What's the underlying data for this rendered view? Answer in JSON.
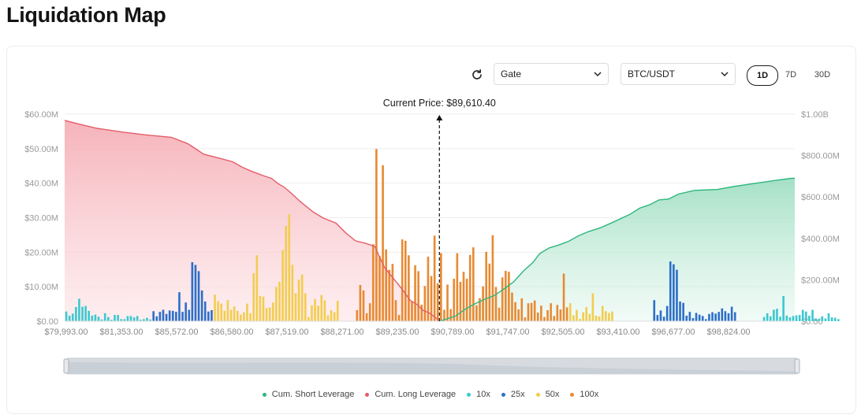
{
  "page": {
    "title": "Liquidation Map"
  },
  "controls": {
    "exchange": "Gate",
    "pair": "BTC/USDT",
    "ranges": [
      "1D",
      "7D",
      "30D"
    ],
    "active_range": "1D"
  },
  "current_price_label": "Current Price: $89,610.40",
  "colors": {
    "short": "#2eb67d",
    "long": "#e35d6a",
    "10x": "#3cc8cf",
    "25x": "#2d6fc8",
    "50x": "#f2cd4f",
    "100x": "#e88a32"
  },
  "chart_data": {
    "type": "bar",
    "left_axis": {
      "ticks": [
        "$0.00",
        "$10.00M",
        "$20.00M",
        "$30.00M",
        "$40.00M",
        "$50.00M",
        "$60.00M"
      ],
      "ylim": [
        0,
        60
      ]
    },
    "right_axis": {
      "ticks": [
        "$0.00",
        "$200.00M",
        "$400.00M",
        "$600.00M",
        "$800.00M",
        "$1.00B"
      ],
      "ylim": [
        0,
        1000
      ]
    },
    "x_ticks": [
      "$79,993.00",
      "$81,353.00",
      "$85,572.00",
      "$86,580.00",
      "$87,519.00",
      "$88,271.00",
      "$89,235.00",
      "$90,789.00",
      "$91,747.00",
      "$92,505.00",
      "$93,410.00",
      "$96,677.00",
      "$98,824.00"
    ],
    "current_price_index": 116,
    "bins": 226,
    "series_bars": [
      {
        "name": "10x",
        "values": [
          2.8,
          1.6,
          2.2,
          4.1,
          6.5,
          4.2,
          4.4,
          3.0,
          1.6,
          1.9,
          1.3,
          0.5,
          2.3,
          1.2,
          0.4,
          1.8,
          1.8,
          0.6,
          0.6,
          1.5,
          1.5,
          1.1,
          1.5,
          0.4,
          0.6,
          1.0,
          0.5,
          0,
          0,
          0,
          0,
          0,
          0,
          0,
          0,
          0,
          0,
          0,
          0,
          0,
          0,
          0,
          0,
          0,
          0,
          0,
          0,
          0,
          0,
          0,
          0,
          0,
          0,
          0,
          0,
          0,
          0,
          0,
          0,
          0,
          0,
          0,
          0,
          0,
          0,
          0,
          0,
          0,
          0,
          0,
          0,
          0,
          0,
          0,
          0,
          0,
          0,
          0,
          0,
          0,
          0,
          0,
          0,
          0,
          0,
          0,
          0,
          0,
          0,
          0,
          0,
          0,
          0,
          0,
          0,
          0,
          0,
          0,
          0,
          0,
          0,
          0,
          0,
          0,
          0,
          0,
          0,
          0,
          0,
          0,
          0,
          0,
          0,
          0,
          0,
          0,
          0,
          0,
          0,
          0,
          0,
          0,
          0,
          0,
          0,
          0,
          0,
          0,
          0,
          0,
          0,
          0,
          0,
          0,
          0,
          0,
          0,
          0,
          0,
          0,
          0,
          0,
          0,
          0,
          0,
          0,
          0,
          0,
          0,
          0,
          0,
          0,
          0,
          0,
          0,
          0,
          0,
          0,
          0,
          0,
          0,
          0,
          0,
          0,
          0,
          0,
          0,
          0,
          0,
          0,
          0,
          0,
          0,
          0,
          0,
          0,
          0,
          0,
          0,
          0,
          0,
          0,
          0,
          0,
          0,
          0,
          0,
          0,
          0,
          0,
          0,
          0,
          0,
          0,
          0,
          0,
          0,
          0,
          0,
          0,
          0,
          0,
          0,
          0,
          0,
          0,
          0,
          0,
          0,
          0,
          0,
          0,
          0,
          0,
          0,
          0,
          1.2,
          2.3,
          1.4,
          3.3,
          3.6,
          1.3,
          7.3,
          1.6,
          1.1,
          1.5,
          1.7,
          1.8,
          3.3,
          2.8,
          1.6,
          3.3,
          0.8,
          0.7,
          1.4,
          0.8,
          2.3,
          1.1,
          1.0,
          0.6
        ]
      },
      {
        "name": "25x",
        "values": [
          0,
          0,
          0,
          0,
          0,
          0,
          0,
          0,
          0,
          0,
          0,
          0,
          0,
          0,
          0,
          0,
          0,
          0,
          0,
          0,
          0,
          0,
          0,
          0,
          0,
          0,
          0,
          2.9,
          1.4,
          2.7,
          3.3,
          2.1,
          3.1,
          3.0,
          2.7,
          8.4,
          2.7,
          5.4,
          3.3,
          17.1,
          16.3,
          14.5,
          8.9,
          5.7,
          2.8,
          3.2,
          0,
          0,
          0,
          0,
          0,
          0,
          0,
          0,
          0,
          0,
          0,
          0,
          0,
          0,
          0,
          0,
          0,
          0,
          0,
          0,
          0,
          0,
          0,
          0,
          0,
          0,
          0,
          0,
          0,
          0,
          0,
          0,
          0,
          0,
          0,
          0,
          0,
          0,
          0,
          0,
          0,
          0,
          0,
          0,
          0,
          0,
          0,
          0,
          0,
          0,
          0,
          0,
          0,
          0,
          0,
          0,
          0,
          0,
          0,
          0,
          0,
          0,
          0,
          0,
          0,
          0,
          0,
          0,
          0,
          0,
          0,
          0,
          0,
          0,
          0,
          0,
          0,
          0,
          0,
          0,
          0,
          0,
          0,
          0,
          0,
          0,
          0,
          0,
          0,
          0,
          0,
          0,
          0,
          0,
          0,
          0,
          0,
          0,
          0,
          0,
          0,
          0,
          0,
          0,
          0,
          0,
          0,
          0,
          0,
          0,
          0,
          0,
          0,
          0,
          0,
          0,
          0,
          0,
          0,
          0,
          0,
          0,
          0,
          0,
          0,
          0,
          0,
          0,
          0,
          0,
          0,
          0,
          0,
          0,
          0,
          0,
          6.1,
          1.8,
          3.1,
          1.3,
          4.4,
          17.3,
          16.5,
          14.9,
          5.7,
          5.3,
          1.6,
          2.7,
          0.9,
          2.4,
          1.9,
          1.5,
          0.6,
          2.1,
          2.6,
          2.2,
          2.7,
          3.7,
          2.9,
          2.3,
          4.2,
          2.6,
          0,
          0,
          0,
          0,
          0,
          0,
          0,
          0,
          0,
          0,
          0,
          0,
          0,
          0,
          0,
          0,
          0,
          0,
          0,
          0,
          0,
          0,
          0,
          0,
          0,
          0
        ]
      },
      {
        "name": "50x",
        "values": [
          0,
          0,
          0,
          0,
          0,
          0,
          0,
          0,
          0,
          0,
          0,
          0,
          0,
          0,
          0,
          0,
          0,
          0,
          0,
          0,
          0,
          0,
          0,
          0,
          0,
          0,
          0,
          0,
          0,
          0,
          0,
          0,
          0,
          0,
          0,
          0,
          0,
          0,
          0,
          0,
          0,
          0,
          0,
          0,
          0,
          0,
          7.7,
          5.8,
          5.1,
          3.0,
          6.1,
          3.3,
          4.3,
          3.0,
          1.9,
          2.6,
          5.1,
          2.3,
          13.9,
          19.1,
          7.3,
          7.1,
          3.8,
          4.0,
          5.4,
          9.9,
          11.4,
          20.6,
          27.6,
          31.0,
          16.3,
          8.1,
          12.0,
          13.5,
          8.1,
          1.2,
          4.6,
          6.4,
          4.5,
          7.6,
          6.0,
          1.7,
          3.2,
          2.6,
          5.9,
          0,
          0,
          0,
          0,
          0,
          0,
          0,
          0,
          0,
          0,
          0,
          0,
          0,
          0,
          0,
          0,
          0,
          0,
          0,
          0,
          0,
          0,
          0,
          0,
          0,
          0,
          0,
          0,
          0,
          0,
          0,
          0,
          0,
          0,
          0,
          0,
          0,
          0,
          0,
          0,
          0,
          0,
          0,
          0,
          0,
          0,
          0,
          0,
          0,
          0,
          0,
          0,
          0,
          0,
          0,
          0,
          0,
          0,
          0,
          0,
          0,
          0,
          0,
          0,
          0,
          0,
          0,
          0,
          0,
          0,
          3.1,
          5.2,
          1.7,
          3.3,
          0.7,
          2.6,
          4.1,
          2.1,
          8.1,
          1.6,
          1.4,
          4.4,
          2.9,
          2.4,
          2.8,
          0,
          0,
          0,
          0,
          0,
          0,
          0,
          0,
          0,
          0,
          0,
          0,
          0,
          0,
          0,
          0,
          0,
          0,
          0,
          0,
          0,
          0,
          0,
          0,
          0,
          0,
          0,
          0,
          0,
          0,
          0,
          0,
          0,
          0,
          0,
          0,
          0,
          0,
          0,
          0,
          0,
          0,
          0,
          0,
          0,
          0,
          0
        ]
      },
      {
        "name": "100x",
        "values": [
          0,
          0,
          0,
          0,
          0,
          0,
          0,
          0,
          0,
          0,
          0,
          0,
          0,
          0,
          0,
          0,
          0,
          0,
          0,
          0,
          0,
          0,
          0,
          0,
          0,
          0,
          0,
          0,
          0,
          0,
          0,
          0,
          0,
          0,
          0,
          0,
          0,
          0,
          0,
          0,
          0,
          0,
          0,
          0,
          0,
          0,
          0,
          0,
          0,
          0,
          0,
          0,
          0,
          0,
          0,
          0,
          0,
          0,
          0,
          0,
          0,
          0,
          0,
          0,
          0,
          0,
          0,
          0,
          0,
          0,
          0,
          0,
          0,
          0,
          0,
          0,
          0,
          0,
          0,
          0,
          0,
          0,
          0,
          0,
          0,
          0,
          0,
          0,
          0,
          0,
          3.2,
          10.5,
          8.9,
          2.3,
          5.2,
          22.3,
          49.9,
          18.9,
          45.2,
          20.8,
          14.9,
          16.6,
          6.1,
          1.8,
          23.7,
          23.3,
          19.1,
          5.7,
          16.2,
          14.5,
          4.8,
          10.2,
          18.7,
          13.1,
          24.8,
          11.0,
          19.7,
          3.3,
          10.6,
          3.5,
          12.3,
          19.7,
          11.4,
          14.3,
          12.3,
          19.2,
          21.4,
          4.6,
          6.7,
          10.1,
          20.1,
          16.7,
          24.9,
          9.9,
          3.9,
          12.7,
          14.6,
          14.3,
          8.3,
          5.5,
          3.4,
          6.6,
          1.1,
          5.2,
          5.3,
          6.0,
          2.5,
          4.5,
          1.2,
          3.2,
          5.2,
          1.5,
          4.7,
          3.4,
          13.8,
          4.0,
          0,
          0,
          0,
          0,
          0,
          0,
          0,
          0,
          0,
          0,
          0,
          0,
          0,
          0,
          0,
          0,
          0,
          0,
          0,
          0,
          0,
          0,
          0,
          0,
          0,
          0,
          0,
          0,
          0,
          0,
          0,
          0,
          0,
          0,
          0,
          0,
          0,
          0,
          0,
          0,
          0,
          0,
          0,
          0,
          0,
          0,
          0,
          0,
          0,
          0,
          0,
          0,
          0,
          0,
          0,
          0,
          0,
          0,
          0,
          0,
          0,
          0,
          0,
          0,
          0,
          0,
          0,
          0,
          0,
          0,
          0,
          0,
          0
        ]
      }
    ],
    "cumulative": [
      {
        "name": "Cum. Short Leverage",
        "points": [
          [
            116,
            0
          ],
          [
            118,
            10
          ],
          [
            121,
            25
          ],
          [
            124,
            58
          ],
          [
            127,
            84
          ],
          [
            130,
            106
          ],
          [
            133,
            124
          ],
          [
            136,
            156
          ],
          [
            139,
            190
          ],
          [
            142,
            242
          ],
          [
            145,
            284
          ],
          [
            147,
            326
          ],
          [
            150,
            354
          ],
          [
            153,
            368
          ],
          [
            156,
            386
          ],
          [
            159,
            412
          ],
          [
            162,
            432
          ],
          [
            166,
            452
          ],
          [
            170,
            480
          ],
          [
            175,
            516
          ],
          [
            178,
            546
          ],
          [
            181,
            562
          ],
          [
            184,
            586
          ],
          [
            187,
            590
          ],
          [
            190,
            614
          ],
          [
            195,
            632
          ],
          [
            202,
            636
          ],
          [
            207,
            650
          ],
          [
            212,
            662
          ],
          [
            220,
            680
          ],
          [
            225,
            690
          ]
        ]
      },
      {
        "name": "Cum. Long Leverage",
        "points": [
          [
            0,
            58.2
          ],
          [
            5,
            57.0
          ],
          [
            10,
            55.9
          ],
          [
            18,
            54.8
          ],
          [
            25,
            54.0
          ],
          [
            33,
            53.3
          ],
          [
            38,
            51.5
          ],
          [
            40,
            50.3
          ],
          [
            43,
            48.4
          ],
          [
            48,
            47.2
          ],
          [
            52,
            46.2
          ],
          [
            55,
            44.6
          ],
          [
            58,
            43.4
          ],
          [
            62,
            42.0
          ],
          [
            64,
            41.4
          ],
          [
            66,
            39.9
          ],
          [
            68,
            38.8
          ],
          [
            70,
            37.2
          ],
          [
            73,
            34.6
          ],
          [
            77,
            31.6
          ],
          [
            80,
            29.9
          ],
          [
            84,
            28.4
          ],
          [
            87,
            25.6
          ],
          [
            90,
            23.3
          ],
          [
            93,
            22.6
          ],
          [
            96,
            21.7
          ],
          [
            97,
            19.6
          ],
          [
            99,
            15.6
          ],
          [
            101,
            13.2
          ],
          [
            103,
            11.0
          ],
          [
            105,
            8.6
          ],
          [
            107,
            6.0
          ],
          [
            109,
            4.9
          ],
          [
            111,
            3.1
          ],
          [
            113,
            2.3
          ],
          [
            115,
            0.9
          ],
          [
            116,
            0
          ]
        ]
      }
    ]
  },
  "legend": [
    {
      "label": "Cum. Short Leverage",
      "color_key": "short"
    },
    {
      "label": "Cum. Long Leverage",
      "color_key": "long"
    },
    {
      "label": "10x",
      "color_key": "10x"
    },
    {
      "label": "25x",
      "color_key": "25x"
    },
    {
      "label": "50x",
      "color_key": "50x"
    },
    {
      "label": "100x",
      "color_key": "100x"
    }
  ]
}
